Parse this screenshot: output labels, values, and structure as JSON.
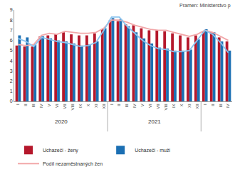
{
  "chart_data": {
    "type": "bar",
    "source": "Pramen: Ministerstvo p",
    "categories": [
      "I",
      "II",
      "III",
      "IV",
      "V",
      "VI",
      "VII",
      "VIII",
      "IX",
      "X",
      "XI",
      "XII",
      "I",
      "II",
      "III",
      "IV",
      "V",
      "VI",
      "VII",
      "VIII",
      "IX",
      "X",
      "XI",
      "XII",
      "I",
      "II",
      "III",
      "IV"
    ],
    "groups": [
      {
        "label": "2020",
        "count": 12
      },
      {
        "label": "2021",
        "count": 12
      },
      {
        "label": null,
        "count": 4
      }
    ],
    "series": [
      {
        "name": "Uchazeči - ženy",
        "type": "bar",
        "color": "#b5172b",
        "values": [
          5.5,
          5.4,
          5.4,
          6.4,
          6.5,
          6.6,
          6.8,
          6.6,
          6.5,
          6.5,
          6.7,
          7.1,
          8.0,
          7.9,
          7.6,
          7.5,
          7.2,
          7.0,
          7.0,
          6.9,
          6.7,
          6.5,
          6.3,
          6.5,
          6.9,
          6.8,
          6.3,
          5.9
        ]
      },
      {
        "name": "Uchazeči - muži",
        "type": "bar",
        "color": "#1b6fb3",
        "values": [
          6.5,
          6.3,
          5.6,
          6.4,
          6.2,
          6.0,
          5.9,
          5.7,
          5.5,
          5.6,
          5.9,
          7.2,
          8.2,
          8.1,
          7.4,
          6.8,
          6.2,
          5.7,
          5.3,
          5.2,
          5.0,
          5.0,
          5.1,
          6.1,
          7.1,
          6.8,
          5.9,
          5.0
        ]
      },
      {
        "name": "Podíl nezaměstnaných žen",
        "type": "line",
        "color": "#f2a7a9",
        "values": [
          5.6,
          5.5,
          5.6,
          6.5,
          6.7,
          6.6,
          6.9,
          6.8,
          6.7,
          6.7,
          6.8,
          7.2,
          8.0,
          8.0,
          7.8,
          7.5,
          7.3,
          7.1,
          7.0,
          7.0,
          6.8,
          6.6,
          6.4,
          6.6,
          7.0,
          6.8,
          6.4,
          6.0
        ]
      },
      {
        "name": null,
        "type": "line",
        "color": "#8cc4ee",
        "values": [
          6.2,
          5.9,
          5.4,
          6.3,
          6.1,
          5.9,
          5.8,
          5.6,
          5.4,
          5.5,
          5.8,
          7.0,
          8.3,
          8.3,
          7.4,
          6.7,
          6.0,
          5.5,
          5.2,
          5.1,
          4.9,
          4.9,
          5.0,
          6.0,
          7.0,
          6.6,
          5.8,
          4.8
        ]
      }
    ],
    "ylim": [
      0,
      9
    ],
    "yticks": [
      0,
      1,
      2,
      3,
      4,
      5,
      6,
      7,
      8,
      9
    ],
    "grid": false,
    "legend": "bottom"
  }
}
